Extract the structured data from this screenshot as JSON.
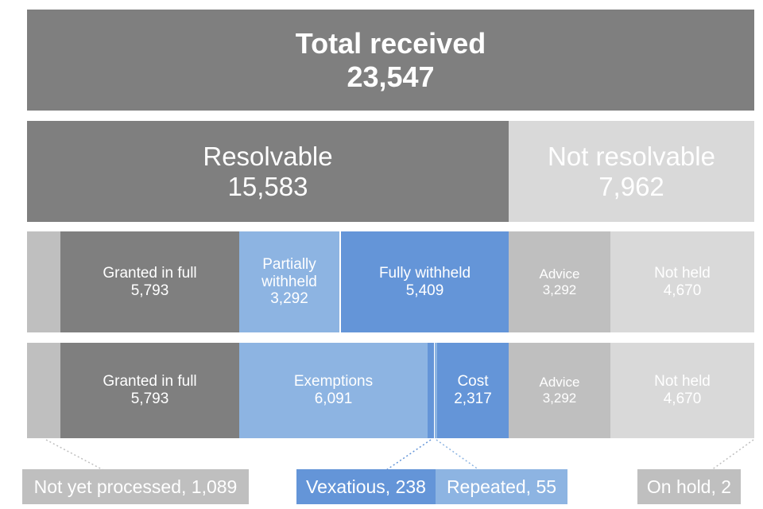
{
  "total": {
    "label": "Total received",
    "value": "23,547"
  },
  "level2": {
    "resolvable": {
      "label": "Resolvable",
      "value": "15,583"
    },
    "not_resolvable": {
      "label": "Not resolvable",
      "value": "7,962"
    }
  },
  "level3": {
    "granted": {
      "label": "Granted in full",
      "value": "5,793"
    },
    "partial": {
      "label": "Partially withheld",
      "value": "3,292"
    },
    "fully": {
      "label": "Fully withheld",
      "value": "5,409"
    },
    "advice": {
      "label": "Advice",
      "value": "3,292"
    },
    "not_held": {
      "label": "Not held",
      "value": "4,670"
    }
  },
  "level4": {
    "granted": {
      "label": "Granted in full",
      "value": "5,793"
    },
    "exemptions": {
      "label": "Exemptions",
      "value": "6,091"
    },
    "cost": {
      "label": "Cost",
      "value": "2,317"
    },
    "advice": {
      "label": "Advice",
      "value": "3,292"
    },
    "not_held": {
      "label": "Not held",
      "value": "4,670"
    }
  },
  "callouts": {
    "not_yet_processed": "Not yet processed, 1,089",
    "vexatious": "Vexatious, 238",
    "repeated": "Repeated, 55",
    "on_hold": "On hold, 2"
  },
  "colors": {
    "dark_grey": "#7f7f7f",
    "light_grey": "#d9d9d9",
    "mid_grey": "#bfbfbf",
    "light_blue": "#8db4e2",
    "blue": "#6495d8"
  }
}
